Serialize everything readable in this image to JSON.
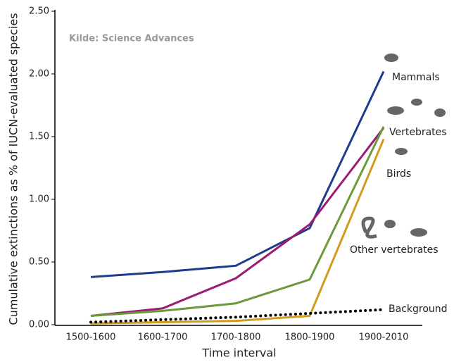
{
  "chart_data": {
    "type": "line",
    "annotation": "Kilde: Science Advances",
    "x_label": "Time interval",
    "y_label": "Cumulative extinctions as % of IUCN-evaluated species",
    "categories": [
      "1500-1600",
      "1600-1700",
      "1700-1800",
      "1800-1900",
      "1900-2010"
    ],
    "series": [
      {
        "name": "Mammals",
        "color": "#1f3b8c",
        "values": [
          0.38,
          0.42,
          0.47,
          0.77,
          2.02
        ]
      },
      {
        "name": "Vertebrates",
        "color": "#9b1b72",
        "values": [
          0.07,
          0.13,
          0.37,
          0.8,
          1.57
        ]
      },
      {
        "name": "Birds",
        "color": "#6a9a3a",
        "values": [
          0.07,
          0.11,
          0.17,
          0.36,
          1.58
        ]
      },
      {
        "name": "Other vertebrates",
        "color": "#d49a1c",
        "values": [
          0.01,
          0.02,
          0.03,
          0.07,
          1.48
        ]
      },
      {
        "name": "Background",
        "color": "#000000",
        "dash": "dotted",
        "values": [
          0.02,
          0.04,
          0.06,
          0.09,
          0.12
        ]
      }
    ],
    "ylim": [
      0,
      2.5
    ],
    "yticks": [
      {
        "value": 0,
        "label": "0.00"
      },
      {
        "value": 0.5,
        "label": "0.50"
      },
      {
        "value": 1,
        "label": "1.00"
      },
      {
        "value": 1.5,
        "label": "1.50"
      },
      {
        "value": 2,
        "label": "2.00"
      },
      {
        "value": 2.5,
        "label": "2.50"
      }
    ]
  }
}
